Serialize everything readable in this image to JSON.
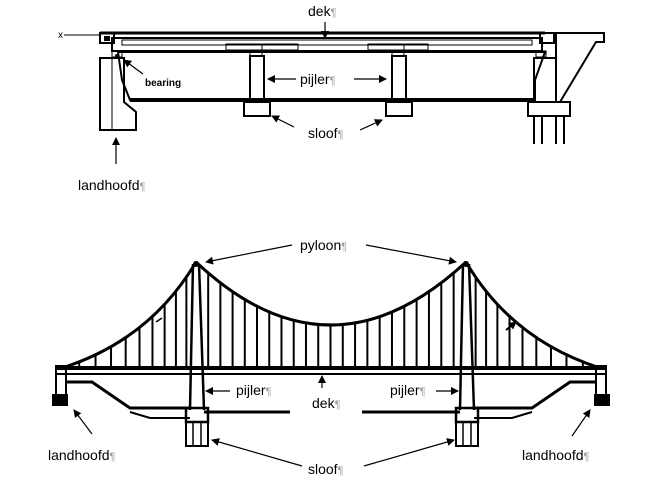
{
  "beam_bridge": {
    "labels": {
      "deck": "dek",
      "bearing": "bearing",
      "pier": "pijler",
      "footing": "sloof",
      "abutment": "landhoofd"
    }
  },
  "suspension_bridge": {
    "labels": {
      "pylon": "pyloon",
      "pier_left": "pijler",
      "pier_right": "pijler",
      "deck": "dek",
      "abutment_left": "landhoofd",
      "abutment_right": "landhoofd",
      "footing": "sloof"
    }
  },
  "pilcrow": "¶",
  "colors": {
    "line": "#000000",
    "pilcrow": "#9a9a9a",
    "background": "#ffffff"
  }
}
